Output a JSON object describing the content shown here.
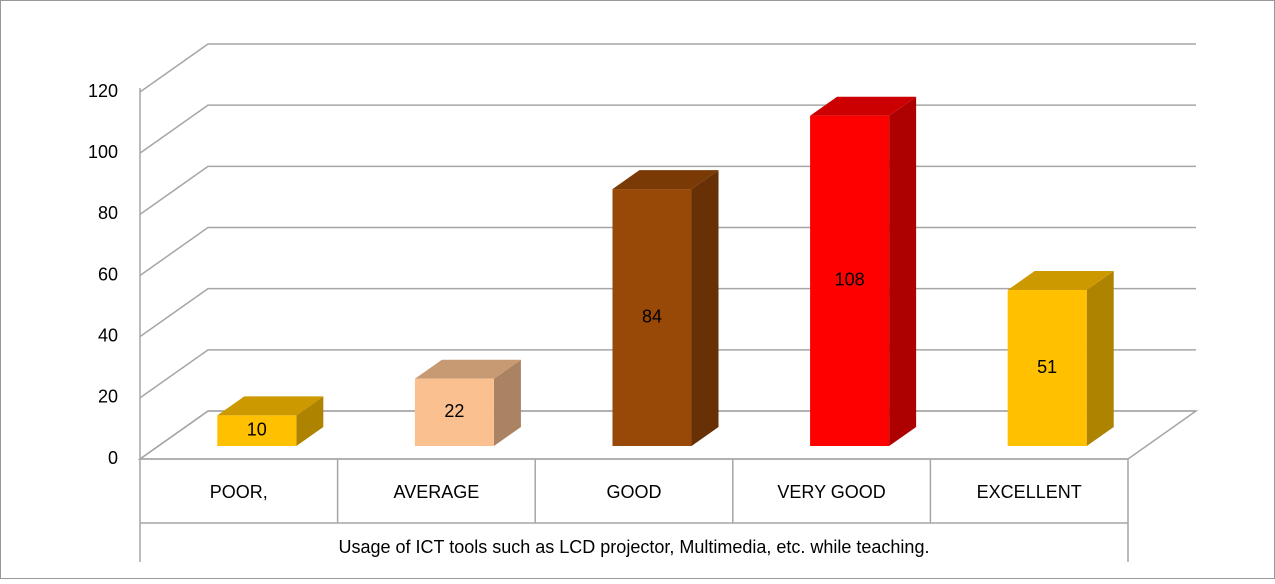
{
  "chart_data": {
    "type": "bar3d",
    "categories": [
      "POOR,",
      "AVERAGE",
      "GOOD",
      "VERY GOOD",
      "EXCELLENT"
    ],
    "values": [
      10,
      22,
      84,
      108,
      51
    ],
    "colors": [
      "#ffc000",
      "#fac090",
      "#984807",
      "#ff0000",
      "#ffc000"
    ],
    "x_label": "Usage of ICT tools such as LCD projector, Multimedia, etc. while teaching.",
    "ylim": [
      0,
      120
    ],
    "yticks": [
      0,
      20,
      40,
      60,
      80,
      100,
      120
    ],
    "grid": true
  }
}
